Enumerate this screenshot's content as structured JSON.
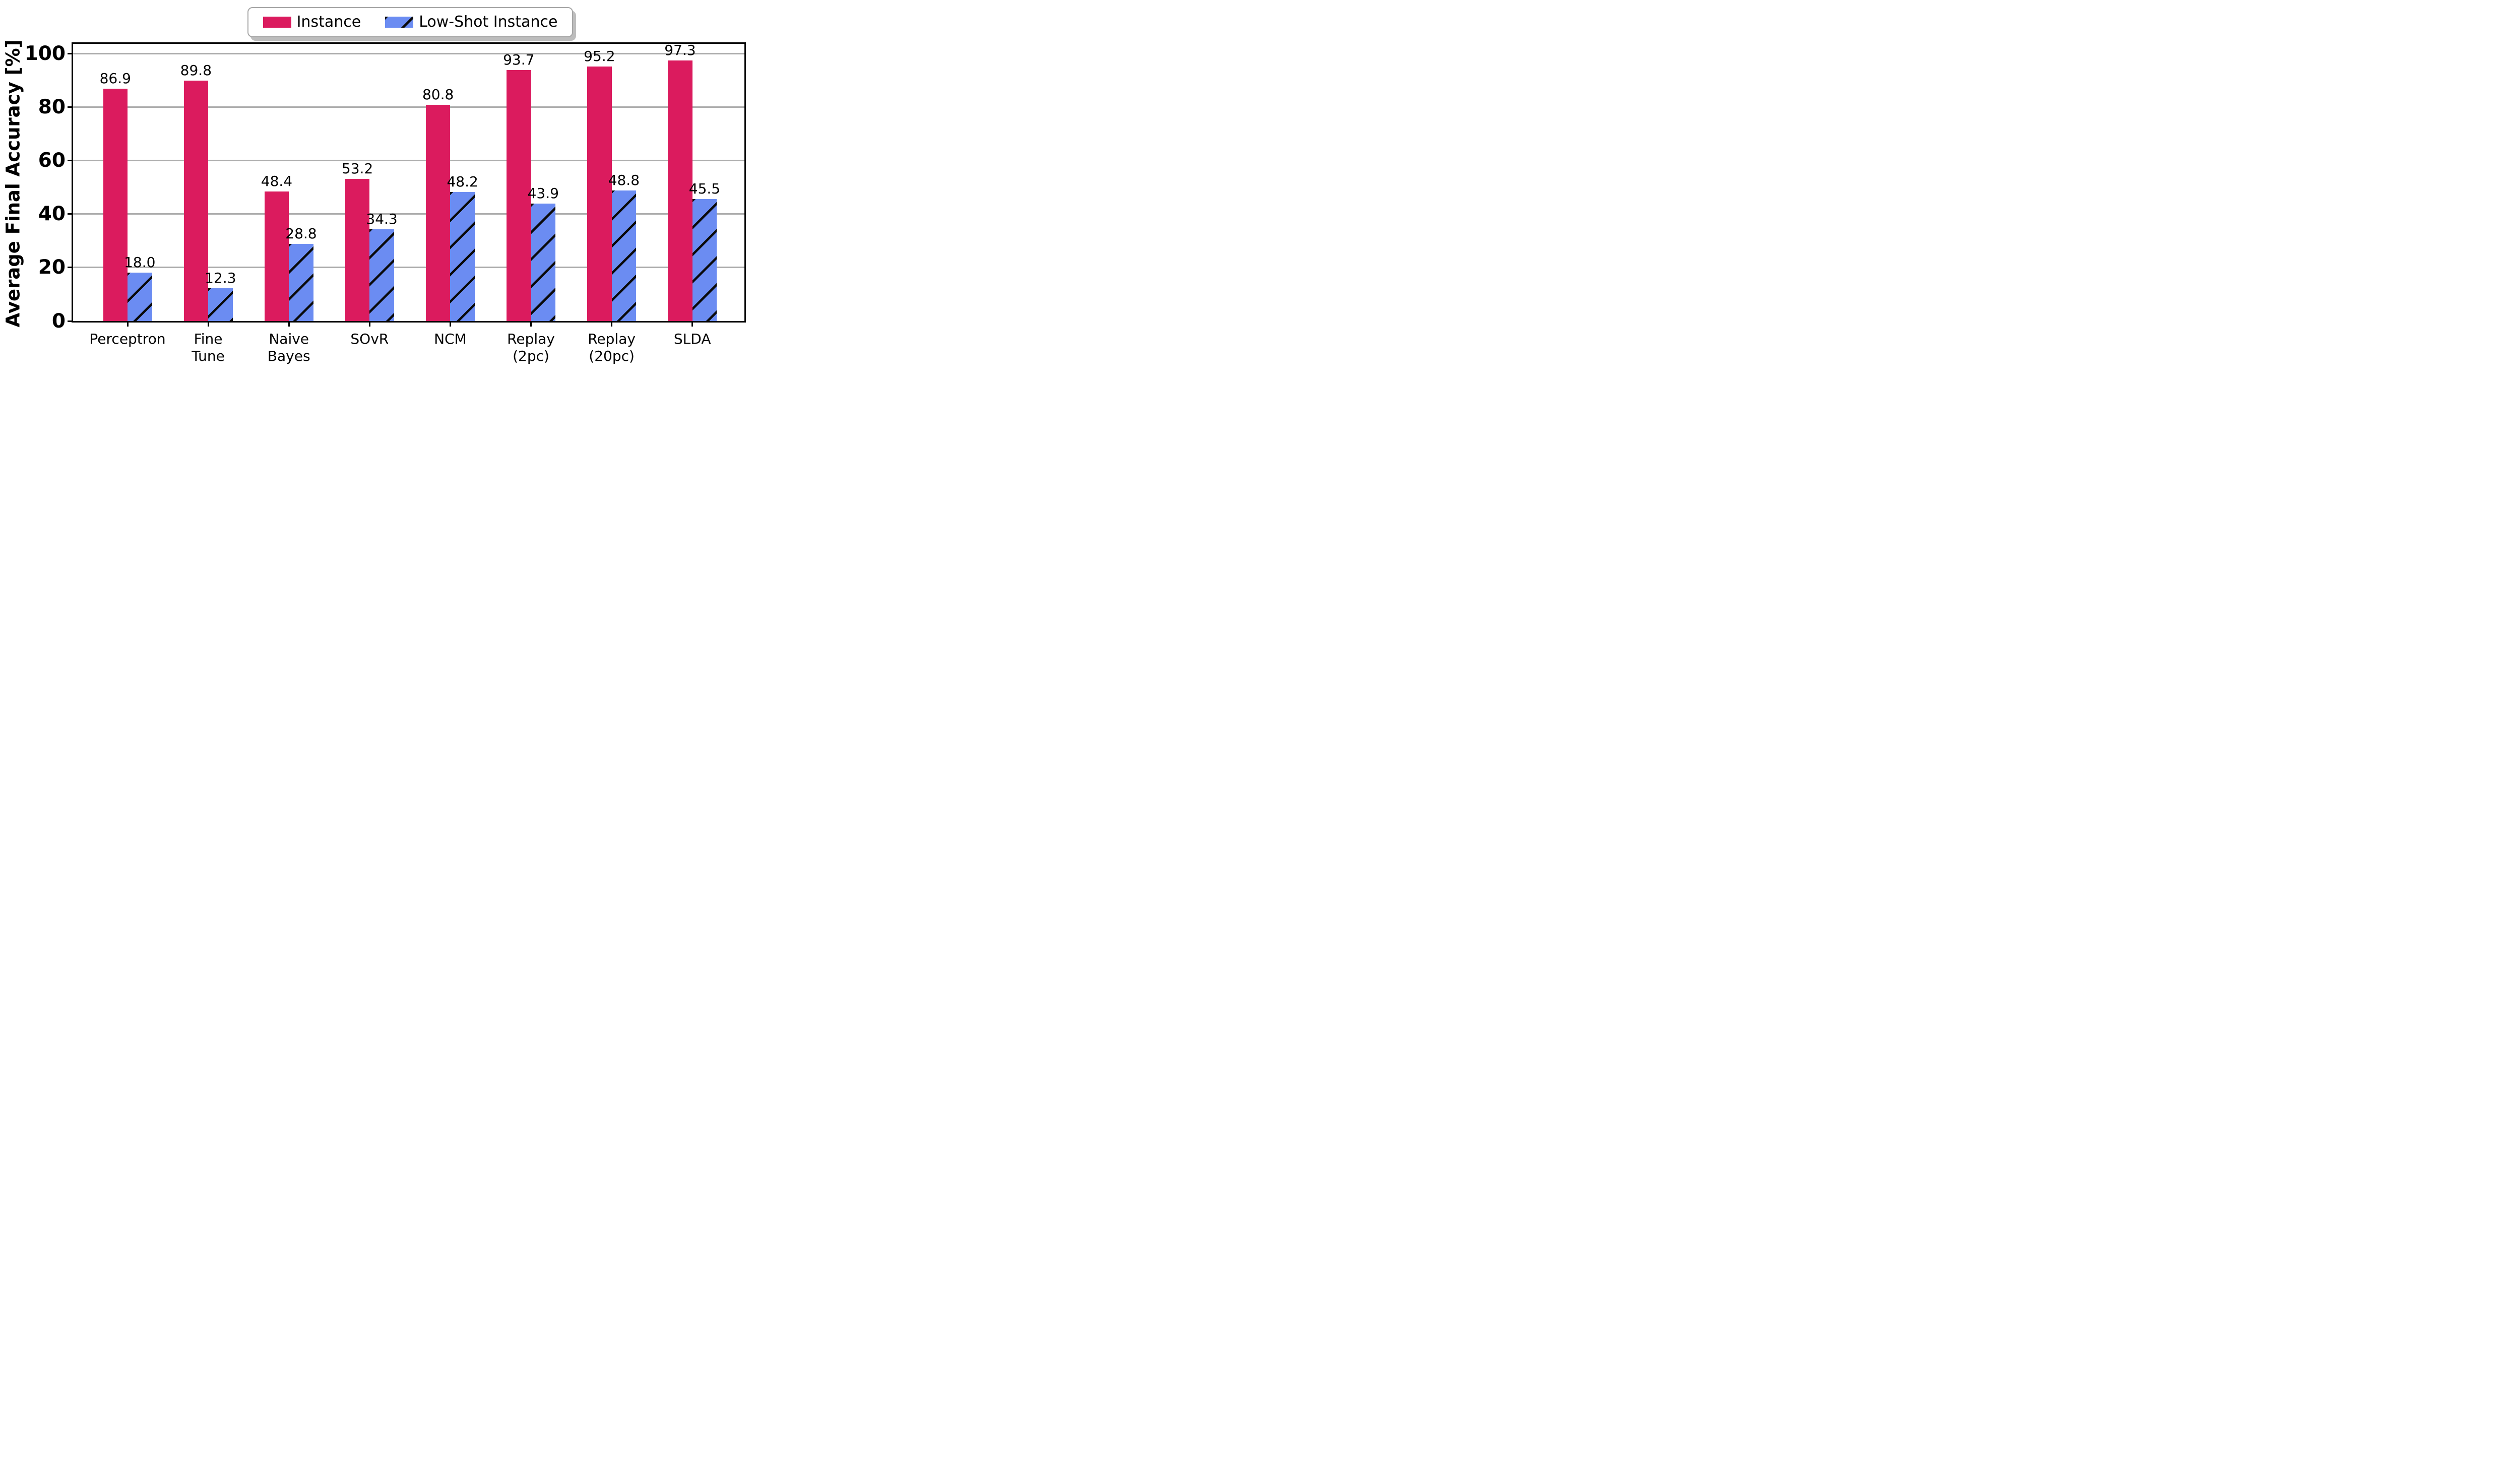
{
  "figure": {
    "background_color": "#ffffff",
    "grid_color": "#adadad",
    "spine_color": "#000000",
    "text_color": "#000000",
    "legend_shadow_color": "#bdbdbd"
  },
  "chart_data": {
    "type": "bar",
    "title": "",
    "xlabel": "",
    "ylabel": "Average Final Accuracy [%]",
    "ylim": [
      0,
      100
    ],
    "yticks": [
      0,
      20,
      40,
      60,
      80,
      100
    ],
    "grid": "horizontal",
    "legend_position": "top-center",
    "bar_value_labels": true,
    "categories": [
      "Perceptron",
      "Fine\nTune",
      "Naive\nBayes",
      "SOvR",
      "NCM",
      "Replay\n(2pc)",
      "Replay\n(20pc)",
      "SLDA"
    ],
    "series": [
      {
        "name": "Instance",
        "color": "#db1b5e",
        "hatch": "none",
        "values": [
          86.9,
          89.8,
          48.4,
          53.2,
          80.8,
          93.7,
          95.2,
          97.3
        ]
      },
      {
        "name": "Low-Shot Instance",
        "color": "#6b8cf2",
        "hatch": "/",
        "hatch_color": "#000000",
        "values": [
          18.0,
          12.3,
          28.8,
          34.3,
          48.2,
          43.9,
          48.8,
          45.5
        ]
      }
    ]
  }
}
